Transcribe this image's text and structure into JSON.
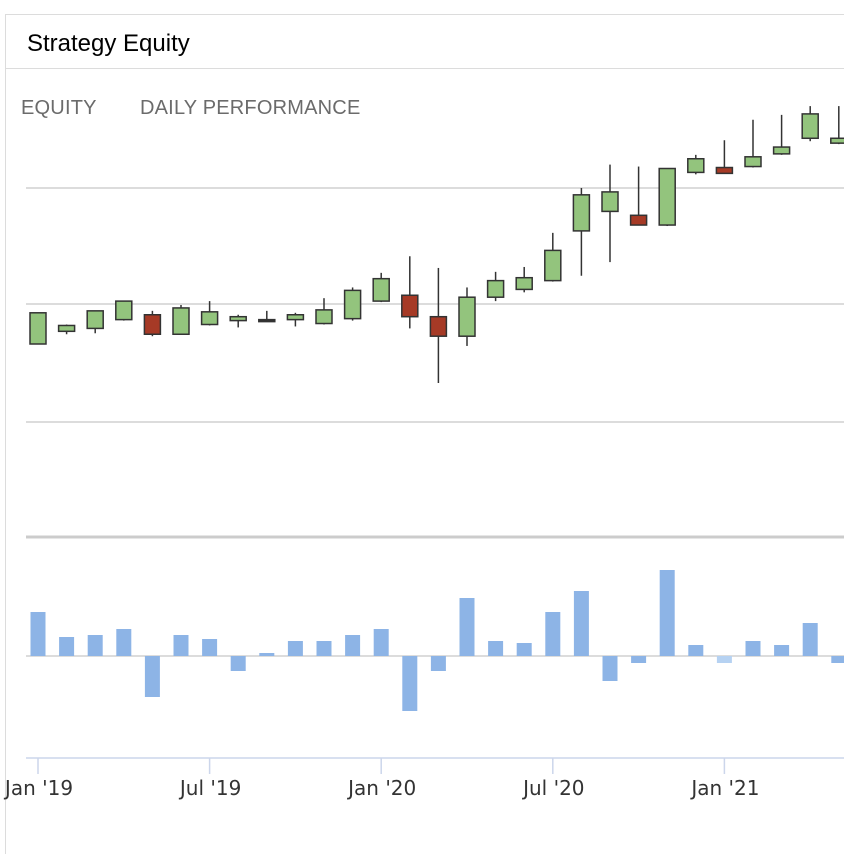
{
  "panel": {
    "title": "Strategy Equity"
  },
  "tabs": [
    {
      "label": "EQUITY"
    },
    {
      "label": "DAILY PERFORMANCE"
    }
  ],
  "colors": {
    "up": "#93c47d",
    "down": "#a63a26",
    "outline": "#333333",
    "bar_pos": "#8db4e6",
    "bar_neg": "#8db4e6",
    "bar_light": "#b6d2f2",
    "grid": "#d0d0d0",
    "divider": "#cccccc"
  },
  "chart_data": [
    {
      "type": "candlestick",
      "title": "",
      "x_dates": [
        "2019-01",
        "2019-02",
        "2019-03",
        "2019-04",
        "2019-05",
        "2019-06",
        "2019-07",
        "2019-08",
        "2019-09",
        "2019-10",
        "2019-11",
        "2019-12",
        "2020-01",
        "2020-02",
        "2020-03",
        "2020-04",
        "2020-05",
        "2020-06",
        "2020-07",
        "2020-08",
        "2020-09",
        "2020-10",
        "2020-11",
        "2020-12",
        "2021-01",
        "2021-02",
        "2021-03",
        "2021-04",
        "2021-05"
      ],
      "open": [
        80.0,
        86.5,
        88.0,
        92.5,
        95.0,
        85.0,
        90.0,
        92.0,
        92.5,
        92.5,
        90.5,
        93.0,
        102.0,
        105.0,
        94.0,
        84.0,
        104.0,
        108.0,
        112.5,
        138.0,
        148.0,
        146.0,
        141.0,
        168.0,
        170.5,
        171.0,
        177.5,
        185.5,
        183.0
      ],
      "high": [
        96.0,
        90.0,
        97.0,
        102.0,
        97.0,
        100.0,
        102.0,
        95.0,
        97.0,
        96.0,
        103.5,
        109.0,
        116.5,
        125.0,
        119.0,
        109.0,
        117.0,
        119.5,
        137.0,
        160.0,
        172.0,
        171.0,
        170.0,
        177.0,
        184.5,
        195.0,
        197.5,
        202.0,
        202.0
      ],
      "low": [
        80.0,
        85.0,
        85.5,
        92.0,
        84.0,
        85.0,
        89.5,
        88.5,
        92.0,
        89.0,
        90.0,
        92.0,
        101.5,
        88.0,
        60.0,
        79.0,
        102.0,
        106.5,
        112.0,
        115.0,
        122.0,
        141.0,
        140.5,
        167.0,
        168.0,
        170.5,
        177.0,
        184.0,
        182.5
      ],
      "close": [
        96.0,
        89.5,
        97.0,
        102.0,
        85.0,
        98.5,
        96.5,
        94.0,
        92.0,
        95.0,
        97.5,
        107.5,
        113.5,
        94.0,
        84.0,
        104.0,
        112.5,
        114.0,
        128.0,
        156.5,
        158.0,
        141.0,
        170.0,
        175.0,
        167.5,
        176.0,
        181.0,
        198.0,
        185.5
      ],
      "y_range": [
        40,
        240
      ],
      "grid": true
    },
    {
      "type": "bar",
      "title": "",
      "x_dates": [
        "2019-01",
        "2019-02",
        "2019-03",
        "2019-04",
        "2019-05",
        "2019-06",
        "2019-07",
        "2019-08",
        "2019-09",
        "2019-10",
        "2019-11",
        "2019-12",
        "2020-01",
        "2020-02",
        "2020-03",
        "2020-04",
        "2020-05",
        "2020-06",
        "2020-07",
        "2020-08",
        "2020-09",
        "2020-10",
        "2020-11",
        "2020-12",
        "2021-01",
        "2021-02",
        "2021-03",
        "2021-04",
        "2021-05"
      ],
      "values": [
        4.4,
        1.9,
        2.1,
        2.7,
        -4.1,
        2.1,
        1.7,
        -1.5,
        0.3,
        1.5,
        1.5,
        2.1,
        2.7,
        -5.5,
        -1.5,
        5.8,
        1.5,
        1.3,
        4.4,
        6.5,
        -2.5,
        -0.7,
        8.6,
        1.1,
        -0.7,
        1.5,
        1.1,
        3.3,
        -0.7
      ],
      "light_indices": [
        24
      ],
      "y_range": [
        -10,
        10
      ],
      "grid": false
    }
  ],
  "x_axis": {
    "tick_labels": [
      "Jan '19",
      "Jul '19",
      "Jan '20",
      "Jul '20",
      "Jan '21"
    ],
    "tick_dates": [
      "2019-01",
      "2019-07",
      "2020-01",
      "2020-07",
      "2021-01"
    ]
  }
}
